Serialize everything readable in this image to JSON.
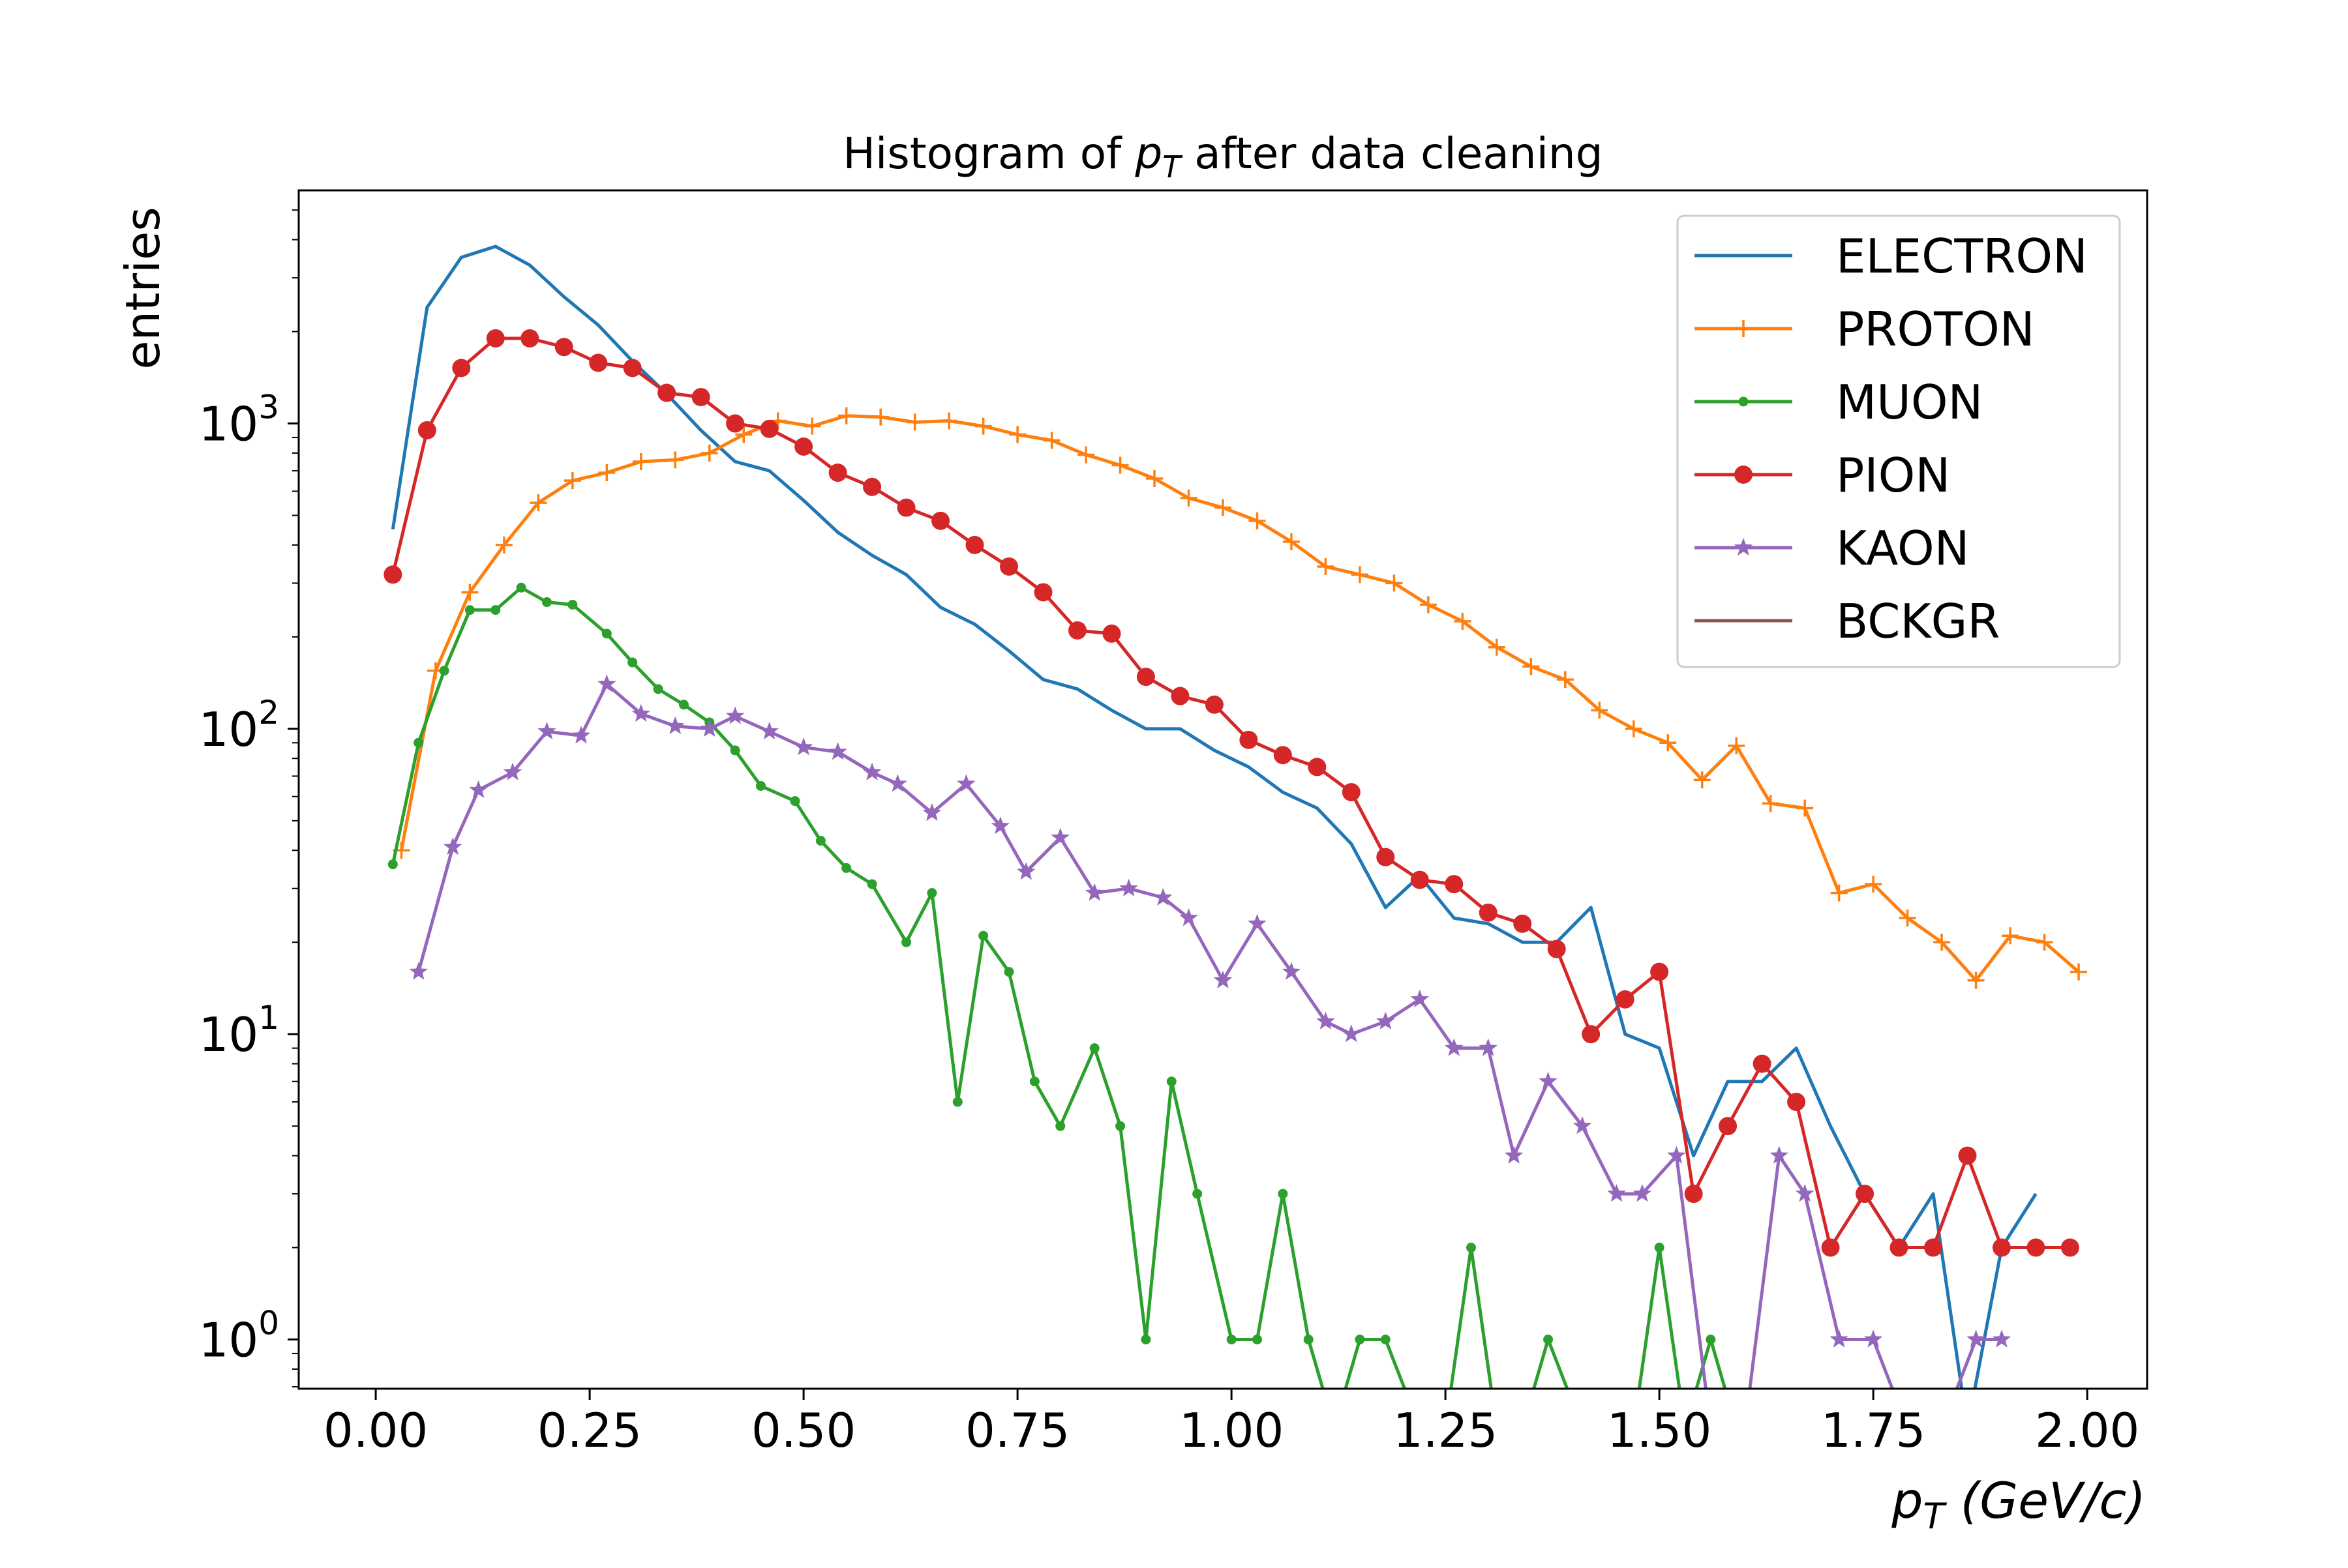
{
  "chart_data": {
    "type": "line",
    "title_prefix": "Histogram of ",
    "title_var": "p",
    "title_sub": "T",
    "title_suffix": " after data cleaning",
    "xlabel_var": "p",
    "xlabel_sub": "T",
    "xlabel_unit": " (GeV/c)",
    "ylabel": "entries",
    "yscale": "log",
    "xlim": [
      -0.09,
      2.07
    ],
    "ylim": [
      0.69,
      5800
    ],
    "x_ticks": [
      0,
      0.25,
      0.5,
      0.75,
      1.0,
      1.25,
      1.5,
      1.75,
      2.0
    ],
    "x_tick_labels": [
      "0.00",
      "0.25",
      "0.50",
      "0.75",
      "1.00",
      "1.25",
      "1.50",
      "1.75",
      "2.00"
    ],
    "y_ticks": [
      1,
      10,
      100,
      1000
    ],
    "y_tick_labels": [
      {
        "base": "10",
        "exp": "0"
      },
      {
        "base": "10",
        "exp": "1"
      },
      {
        "base": "10",
        "exp": "2"
      },
      {
        "base": "10",
        "exp": "3"
      }
    ],
    "grid": false,
    "legend_position": "top-right",
    "series": [
      {
        "name": "ELECTRON",
        "color": "#1f77b4",
        "marker": "none",
        "x": [
          0.02,
          0.06,
          0.1,
          0.14,
          0.18,
          0.22,
          0.26,
          0.3,
          0.34,
          0.38,
          0.42,
          0.46,
          0.5,
          0.54,
          0.58,
          0.62,
          0.66,
          0.7,
          0.74,
          0.78,
          0.82,
          0.86,
          0.9,
          0.94,
          0.98,
          1.02,
          1.06,
          1.1,
          1.14,
          1.18,
          1.22,
          1.26,
          1.3,
          1.34,
          1.38,
          1.42,
          1.46,
          1.5,
          1.54,
          1.58,
          1.62,
          1.66,
          1.7,
          1.74,
          1.78,
          1.82,
          1.86,
          1.9,
          1.94
        ],
        "y": [
          450,
          2400,
          3500,
          3800,
          3300,
          2600,
          2100,
          1600,
          1250,
          950,
          750,
          700,
          560,
          440,
          370,
          320,
          250,
          220,
          180,
          145,
          135,
          115,
          100,
          100,
          85,
          75,
          62,
          55,
          42,
          26,
          33,
          24,
          23,
          20,
          20,
          26,
          10,
          9,
          4,
          7,
          7,
          9,
          5,
          3,
          2,
          3,
          0,
          2,
          3
        ]
      },
      {
        "name": "PROTON",
        "color": "#ff7f0e",
        "marker": "plus",
        "x": [
          0.03,
          0.07,
          0.11,
          0.15,
          0.19,
          0.23,
          0.27,
          0.31,
          0.35,
          0.39,
          0.43,
          0.47,
          0.51,
          0.55,
          0.59,
          0.63,
          0.67,
          0.71,
          0.75,
          0.79,
          0.83,
          0.87,
          0.91,
          0.95,
          0.99,
          1.03,
          1.07,
          1.11,
          1.15,
          1.19,
          1.23,
          1.27,
          1.31,
          1.35,
          1.39,
          1.43,
          1.47,
          1.51,
          1.55,
          1.59,
          1.63,
          1.67,
          1.71,
          1.75,
          1.79,
          1.83,
          1.87,
          1.91,
          1.95,
          1.99
        ],
        "y": [
          40,
          155,
          280,
          400,
          550,
          650,
          690,
          750,
          760,
          800,
          920,
          1020,
          980,
          1060,
          1050,
          1010,
          1020,
          980,
          920,
          880,
          790,
          730,
          660,
          570,
          530,
          480,
          410,
          340,
          320,
          300,
          255,
          225,
          185,
          160,
          145,
          115,
          100,
          90,
          68,
          88,
          57,
          55,
          29,
          31,
          24,
          20,
          15,
          21,
          20,
          16
        ]
      },
      {
        "name": "MUON",
        "color": "#2ca02c",
        "marker": "dot",
        "x": [
          0.02,
          0.05,
          0.08,
          0.11,
          0.14,
          0.17,
          0.2,
          0.23,
          0.27,
          0.3,
          0.33,
          0.36,
          0.39,
          0.42,
          0.45,
          0.49,
          0.52,
          0.55,
          0.58,
          0.62,
          0.65,
          0.68,
          0.71,
          0.74,
          0.77,
          0.8,
          0.84,
          0.87,
          0.9,
          0.93,
          0.96,
          1.0,
          1.03,
          1.06,
          1.09,
          1.12,
          1.15,
          1.18,
          1.22,
          1.25,
          1.28,
          1.31,
          1.34,
          1.37,
          1.41,
          1.44,
          1.47,
          1.5,
          1.53,
          1.56,
          1.59
        ],
        "y": [
          36,
          90,
          155,
          245,
          245,
          290,
          260,
          255,
          205,
          165,
          135,
          120,
          105,
          85,
          65,
          58,
          43,
          35,
          31,
          20,
          29,
          6,
          21,
          16,
          7,
          5,
          9,
          5,
          1,
          7,
          3,
          1,
          1,
          3,
          1,
          0,
          1,
          1,
          0,
          0,
          2,
          0,
          0,
          1,
          0,
          0,
          0,
          2,
          0,
          1,
          0
        ]
      },
      {
        "name": "PION",
        "color": "#d62728",
        "marker": "circle",
        "x": [
          0.02,
          0.06,
          0.1,
          0.14,
          0.18,
          0.22,
          0.26,
          0.3,
          0.34,
          0.38,
          0.42,
          0.46,
          0.5,
          0.54,
          0.58,
          0.62,
          0.66,
          0.7,
          0.74,
          0.78,
          0.82,
          0.86,
          0.9,
          0.94,
          0.98,
          1.02,
          1.06,
          1.1,
          1.14,
          1.18,
          1.22,
          1.26,
          1.3,
          1.34,
          1.38,
          1.42,
          1.46,
          1.5,
          1.54,
          1.58,
          1.62,
          1.66,
          1.7,
          1.74,
          1.78,
          1.82,
          1.86,
          1.9,
          1.94,
          1.98
        ],
        "y": [
          320,
          950,
          1520,
          1900,
          1900,
          1780,
          1580,
          1520,
          1260,
          1220,
          1000,
          960,
          840,
          690,
          620,
          530,
          480,
          400,
          340,
          280,
          210,
          205,
          148,
          128,
          120,
          92,
          82,
          75,
          62,
          38,
          32,
          31,
          25,
          23,
          19,
          10,
          13,
          16,
          3,
          5,
          8,
          6,
          2,
          3,
          2,
          2,
          4,
          2,
          2,
          2
        ]
      },
      {
        "name": "KAON",
        "color": "#9467bd",
        "marker": "star",
        "x": [
          0.05,
          0.09,
          0.12,
          0.16,
          0.2,
          0.24,
          0.27,
          0.31,
          0.35,
          0.39,
          0.42,
          0.46,
          0.5,
          0.54,
          0.58,
          0.61,
          0.65,
          0.69,
          0.73,
          0.76,
          0.8,
          0.84,
          0.88,
          0.92,
          0.95,
          0.99,
          1.03,
          1.07,
          1.11,
          1.14,
          1.18,
          1.22,
          1.26,
          1.3,
          1.33,
          1.37,
          1.41,
          1.45,
          1.48,
          1.52,
          1.56,
          1.6,
          1.64,
          1.67,
          1.71,
          1.75,
          1.79,
          1.83,
          1.87,
          1.9
        ],
        "y": [
          16,
          41,
          63,
          72,
          98,
          95,
          140,
          112,
          102,
          100,
          110,
          98,
          87,
          84,
          72,
          66,
          53,
          66,
          48,
          34,
          44,
          29,
          30,
          28,
          24,
          15,
          23,
          16,
          11,
          10,
          11,
          13,
          9,
          9,
          4,
          7,
          5,
          3,
          3,
          4,
          0,
          0,
          4,
          3,
          1,
          1,
          0,
          0,
          1,
          1
        ]
      },
      {
        "name": "BCKGR",
        "color": "#8c564b",
        "marker": "none",
        "x": [],
        "y": []
      }
    ]
  }
}
